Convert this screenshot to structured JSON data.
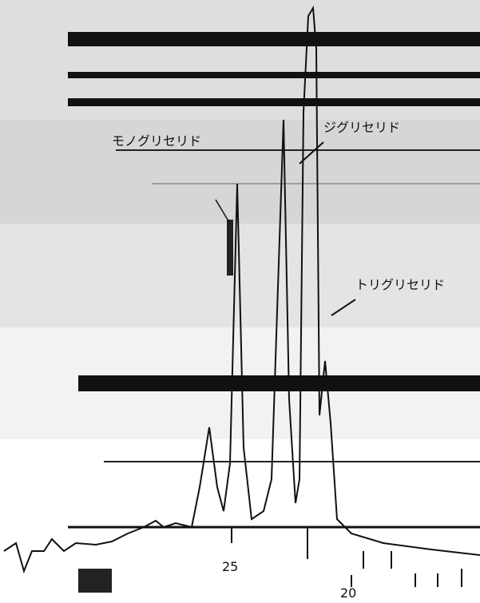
{
  "annotations": {
    "diglyceride": "ジグリセリド",
    "triglyceride": "トリグリセリド",
    "monoglyceride": "モノグリセリド"
  },
  "axis": {
    "labels": [
      "25",
      "20"
    ]
  }
}
